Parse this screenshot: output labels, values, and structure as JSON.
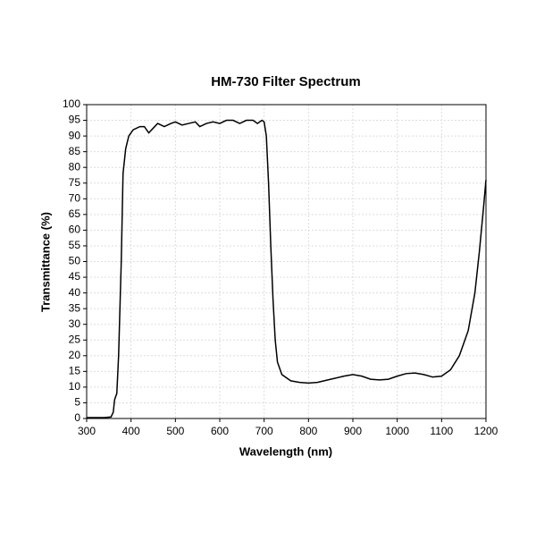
{
  "chart_data": {
    "type": "line",
    "title": "HM-730 Filter Spectrum",
    "xlabel": "Wavelength (nm)",
    "ylabel": "Transmittance (%)",
    "x": [
      300,
      340,
      355,
      360,
      363,
      368,
      372,
      378,
      382,
      388,
      395,
      405,
      420,
      430,
      440,
      450,
      460,
      475,
      490,
      500,
      515,
      530,
      545,
      555,
      570,
      585,
      600,
      615,
      630,
      645,
      660,
      675,
      685,
      695,
      700,
      705,
      710,
      715,
      720,
      725,
      730,
      740,
      760,
      780,
      800,
      820,
      850,
      880,
      900,
      920,
      940,
      960,
      980,
      1000,
      1020,
      1040,
      1060,
      1080,
      1100,
      1120,
      1140,
      1160,
      1175,
      1185,
      1195,
      1200
    ],
    "series": [
      {
        "name": "HM-730",
        "color": "#000000",
        "values": [
          0.3,
          0.3,
          0.5,
          2,
          6,
          8,
          20,
          50,
          78,
          86,
          90,
          92,
          93,
          93,
          91,
          92.5,
          94,
          93,
          94,
          94.5,
          93.5,
          94,
          94.5,
          93,
          94,
          94.5,
          94,
          95,
          95,
          94,
          95,
          95,
          94,
          95,
          94.5,
          90,
          75,
          55,
          38,
          25,
          18,
          14,
          12,
          11.5,
          11.3,
          11.5,
          12.5,
          13.5,
          14,
          13.5,
          12.5,
          12.3,
          12.5,
          13.5,
          14.3,
          14.5,
          14,
          13.2,
          13.5,
          15.5,
          20,
          28,
          40,
          53,
          68,
          76
        ]
      }
    ],
    "xlim": [
      300,
      1200
    ],
    "xticks": [
      300,
      400,
      500,
      600,
      700,
      800,
      900,
      1000,
      1100,
      1200
    ],
    "ylim": [
      0,
      100
    ],
    "yticks": [
      0,
      5,
      10,
      15,
      20,
      25,
      30,
      35,
      40,
      45,
      50,
      55,
      60,
      65,
      70,
      75,
      80,
      85,
      90,
      95,
      100
    ],
    "grid": true
  }
}
